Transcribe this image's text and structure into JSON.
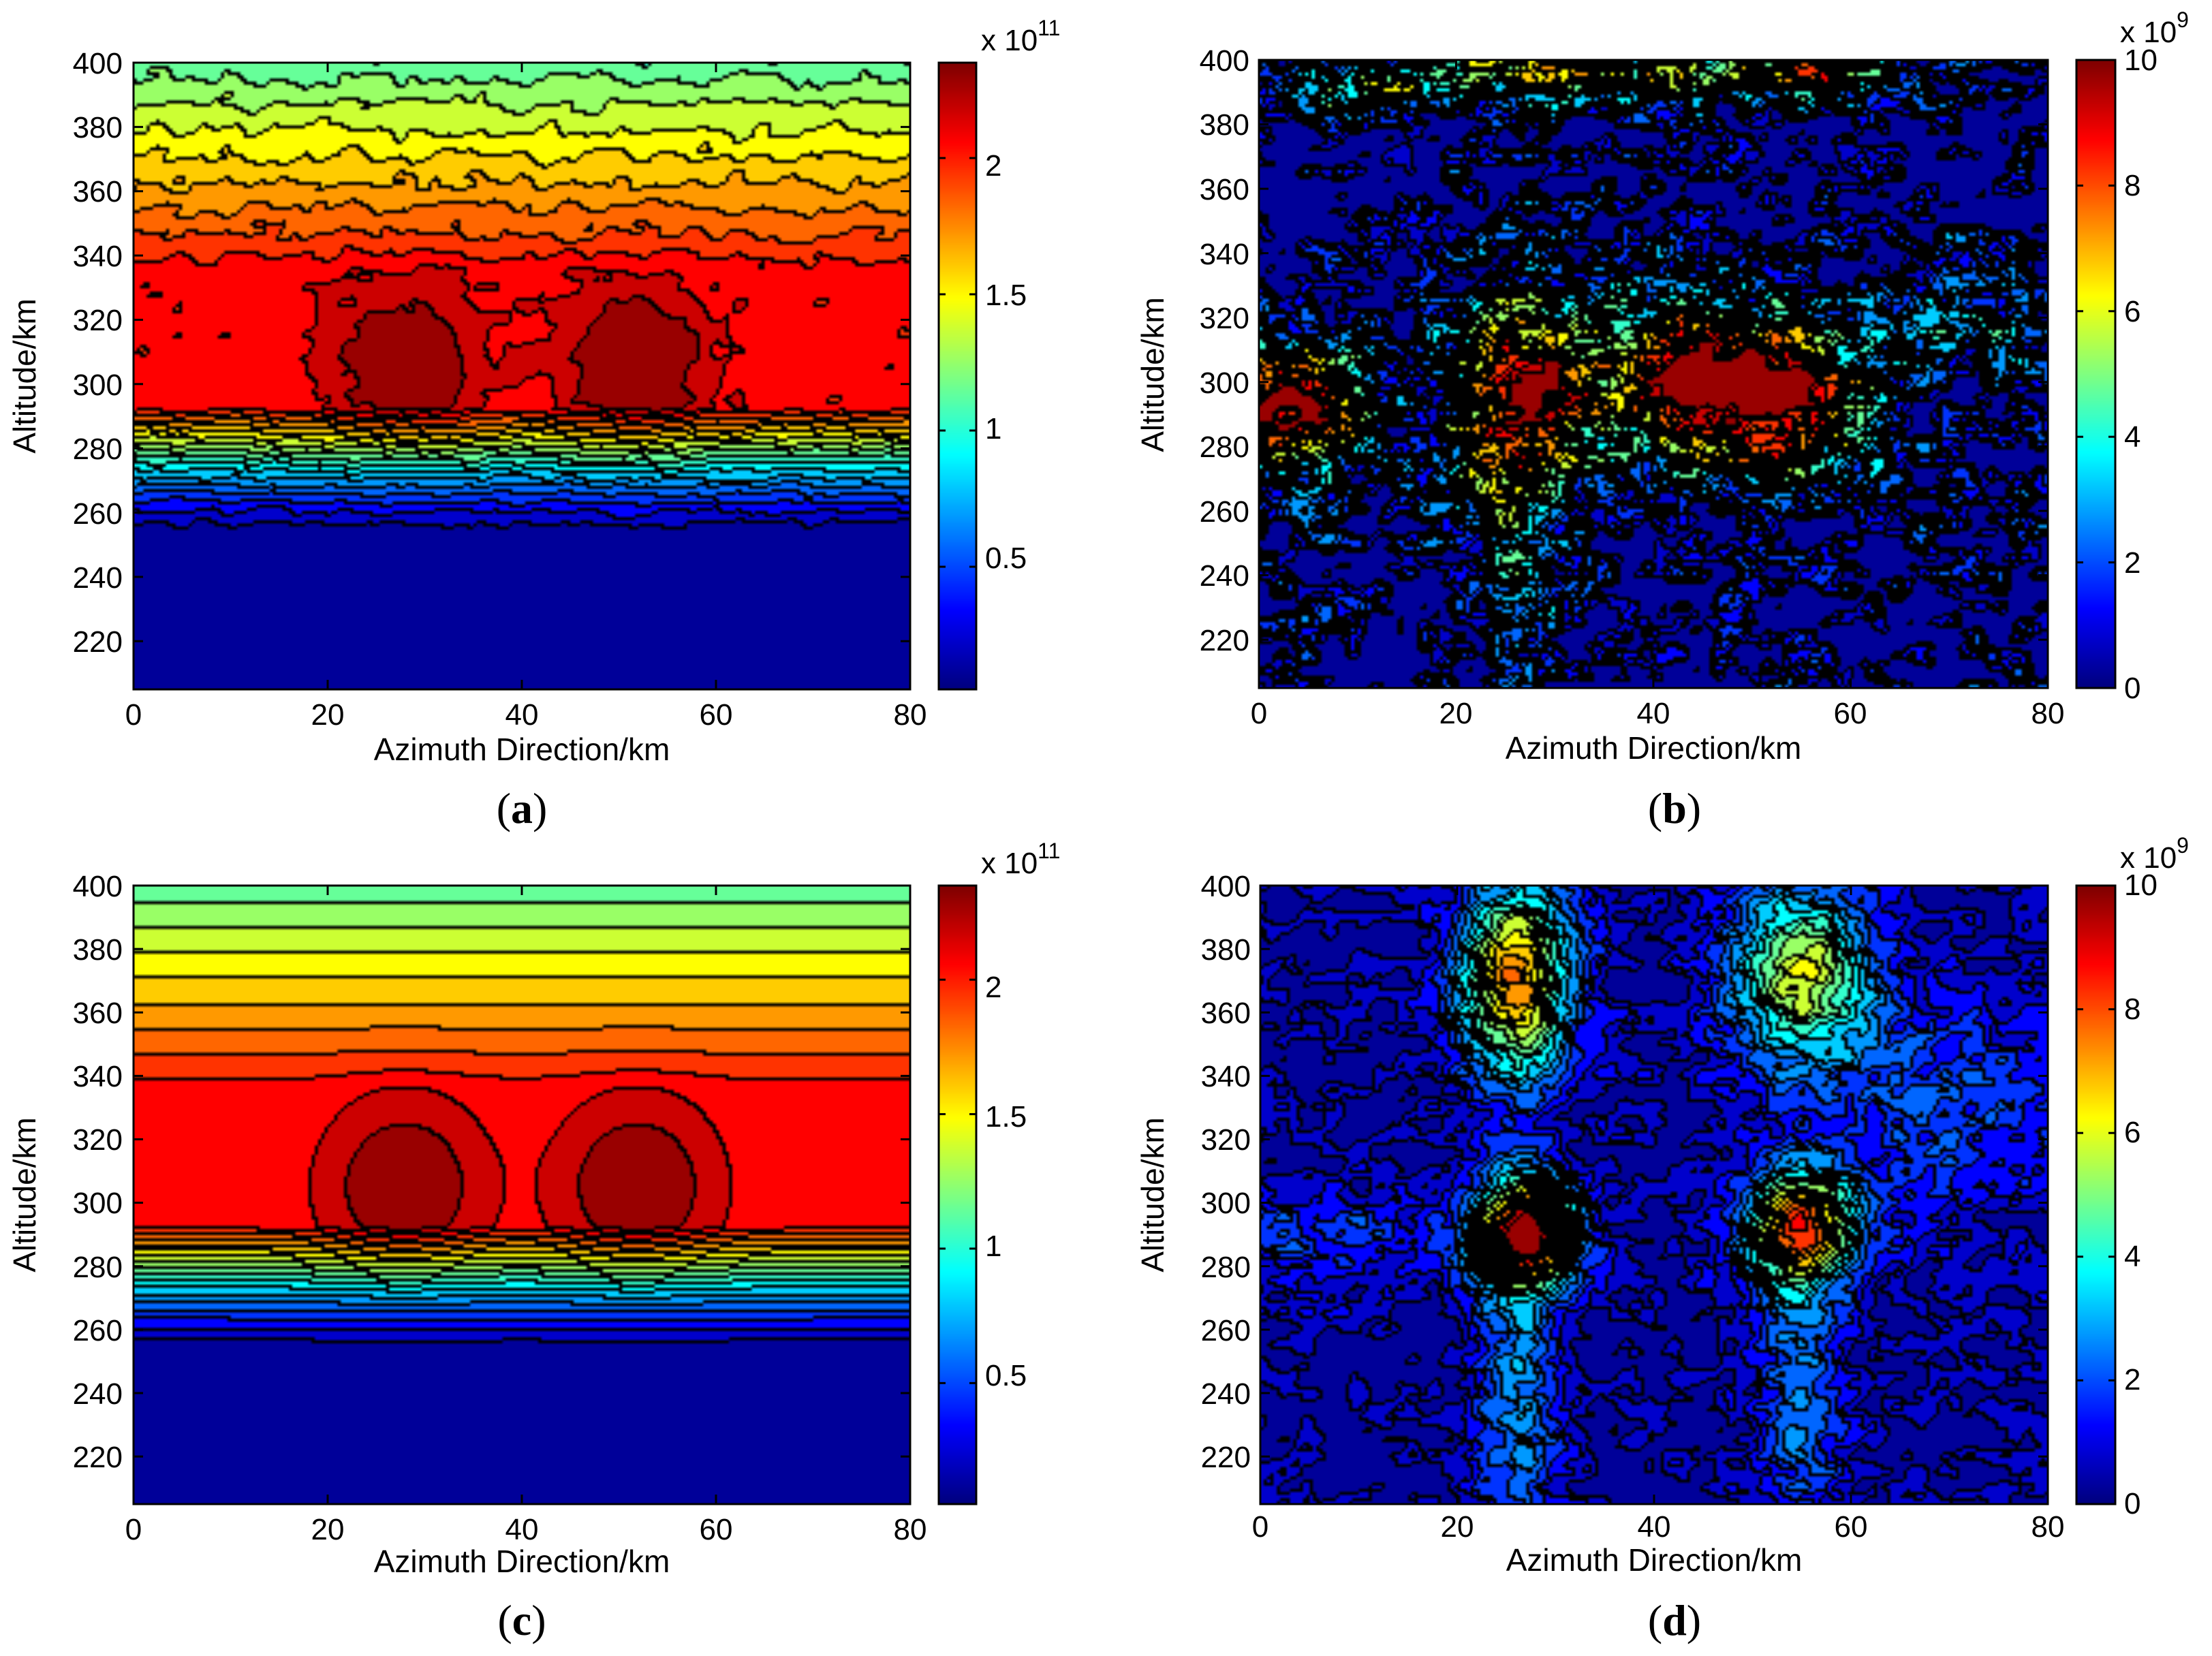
{
  "chart_data": [
    {
      "id": "a",
      "type": "heatmap",
      "subtype": "filled-contour",
      "panel_label": "a",
      "xlabel": "Azimuth Direction/km",
      "ylabel": "Altitude/km",
      "xlim": [
        0,
        80
      ],
      "ylim": [
        205,
        400
      ],
      "xticks": [
        "0",
        "20",
        "40",
        "60",
        "80"
      ],
      "yticks": [
        "220",
        "240",
        "260",
        "280",
        "300",
        "320",
        "340",
        "360",
        "380",
        "400"
      ],
      "colorbar": {
        "range": [
          0.05,
          2.35
        ],
        "ticks": [
          "0.5",
          "1",
          "1.5",
          "2"
        ],
        "multiplier_base": "x 10",
        "multiplier_exp": "11"
      },
      "model": {
        "background": 0.05,
        "layer": {
          "peak": 2.0,
          "bottom": 292,
          "ramp": 42,
          "top_base": 335,
          "top_decay": 70
        },
        "sources": [
          {
            "x": 28,
            "y": 305,
            "amp": 0.33,
            "sx": 5.5,
            "sy": 18
          },
          {
            "x": 52,
            "y": 305,
            "amp": 0.33,
            "sx": 5.5,
            "sy": 18
          }
        ],
        "noise": 0.07
      }
    },
    {
      "id": "b",
      "type": "heatmap",
      "subtype": "filled-contour",
      "panel_label": "b",
      "xlabel": "Azimuth Direction/km",
      "ylabel": "Altitude/km",
      "xlim": [
        0,
        80
      ],
      "ylim": [
        205,
        400
      ],
      "xticks": [
        "0",
        "20",
        "40",
        "60",
        "80"
      ],
      "yticks": [
        "220",
        "240",
        "260",
        "280",
        "300",
        "320",
        "340",
        "360",
        "380",
        "400"
      ],
      "colorbar": {
        "range": [
          0,
          10
        ],
        "ticks": [
          "0",
          "2",
          "4",
          "6",
          "8",
          "10"
        ],
        "multiplier_base": "x 10",
        "multiplier_exp": "9"
      },
      "model": {
        "background": 0.3,
        "sources": [
          {
            "x": 3,
            "y": 292,
            "amp": 10,
            "sx": 6,
            "sy": 14
          },
          {
            "x": 27,
            "y": 295,
            "amp": 10,
            "sx": 5,
            "sy": 22
          },
          {
            "x": 42,
            "y": 300,
            "amp": 8,
            "sx": 5,
            "sy": 18
          },
          {
            "x": 53,
            "y": 295,
            "amp": 10,
            "sx": 6,
            "sy": 18
          },
          {
            "x": 30,
            "y": 395,
            "amp": 7,
            "sx": 8,
            "sy": 6
          },
          {
            "x": 55,
            "y": 395,
            "amp": 7,
            "sx": 8,
            "sy": 6
          },
          {
            "x": 10,
            "y": 392,
            "amp": 5,
            "sx": 6,
            "sy": 6
          },
          {
            "x": 26,
            "y": 235,
            "amp": 3,
            "sx": 3,
            "sy": 25
          },
          {
            "x": 72,
            "y": 320,
            "amp": 3,
            "sx": 6,
            "sy": 15
          }
        ],
        "noise": 3.0
      }
    },
    {
      "id": "c",
      "type": "heatmap",
      "subtype": "filled-contour",
      "panel_label": "c",
      "xlabel": "Azimuth Direction/km",
      "ylabel": "Altitude/km",
      "xlim": [
        0,
        80
      ],
      "ylim": [
        205,
        400
      ],
      "xticks": [
        "0",
        "20",
        "40",
        "60",
        "80"
      ],
      "yticks": [
        "220",
        "240",
        "260",
        "280",
        "300",
        "320",
        "340",
        "360",
        "380",
        "400"
      ],
      "colorbar": {
        "range": [
          0.05,
          2.35
        ],
        "ticks": [
          "0.5",
          "1",
          "1.5",
          "2"
        ],
        "multiplier_base": "x 10",
        "multiplier_exp": "11"
      },
      "model": {
        "background": 0.05,
        "layer": {
          "peak": 2.0,
          "bottom": 292,
          "ramp": 42,
          "top_base": 335,
          "top_decay": 70
        },
        "sources": [
          {
            "x": 28,
            "y": 305,
            "amp": 0.33,
            "sx": 5.5,
            "sy": 18
          },
          {
            "x": 52,
            "y": 305,
            "amp": 0.33,
            "sx": 5.5,
            "sy": 18
          }
        ],
        "noise": 0.0
      }
    },
    {
      "id": "d",
      "type": "heatmap",
      "subtype": "filled-contour",
      "panel_label": "d",
      "xlabel": "Azimuth Direction/km",
      "ylabel": "Altitude/km",
      "xlim": [
        0,
        80
      ],
      "ylim": [
        205,
        400
      ],
      "xticks": [
        "0",
        "20",
        "40",
        "60",
        "80"
      ],
      "yticks": [
        "220",
        "240",
        "260",
        "280",
        "300",
        "320",
        "340",
        "360",
        "380",
        "400"
      ],
      "colorbar": {
        "range": [
          0,
          10
        ],
        "ticks": [
          "0",
          "2",
          "4",
          "6",
          "8",
          "10"
        ],
        "multiplier_base": "x 10",
        "multiplier_exp": "9"
      },
      "model": {
        "background": 0.4,
        "sources": [
          {
            "x": 27,
            "y": 290,
            "amp": 9.5,
            "sx": 3.5,
            "sy": 12
          },
          {
            "x": 55,
            "y": 292,
            "amp": 7.5,
            "sx": 4,
            "sy": 12
          },
          {
            "x": 26,
            "y": 370,
            "amp": 7,
            "sx": 4,
            "sy": 22
          },
          {
            "x": 55,
            "y": 372,
            "amp": 5.5,
            "sx": 5,
            "sy": 20
          },
          {
            "x": 26,
            "y": 240,
            "amp": 2.3,
            "sx": 3,
            "sy": 35
          },
          {
            "x": 55,
            "y": 240,
            "amp": 2.3,
            "sx": 3,
            "sy": 35
          },
          {
            "x": 5,
            "y": 290,
            "amp": 1.2,
            "sx": 12,
            "sy": 12
          },
          {
            "x": 70,
            "y": 330,
            "amp": 1.5,
            "sx": 10,
            "sy": 25
          }
        ],
        "noise": 0.9
      }
    }
  ]
}
